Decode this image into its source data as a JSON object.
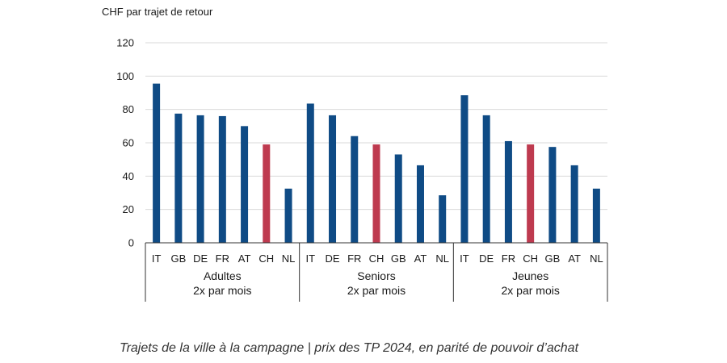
{
  "chart_data": {
    "type": "bar",
    "unit_label": "CHF par trajet de retour",
    "ylim": [
      0,
      120
    ],
    "yticks": [
      0,
      20,
      40,
      60,
      80,
      100,
      120
    ],
    "grid": true,
    "legend": "none",
    "colors": {
      "default": "#0F4B85",
      "highlight": "#BE3A4F",
      "grid": "#D9D9D9",
      "axis": "#333333"
    },
    "highlight_category": "CH",
    "groups": [
      {
        "label": "Adultes",
        "sublabel": "2x par mois",
        "categories": [
          "IT",
          "GB",
          "DE",
          "FR",
          "AT",
          "CH",
          "NL"
        ],
        "values": [
          95.5,
          77.5,
          76.5,
          76,
          70,
          59,
          32.5
        ]
      },
      {
        "label": "Seniors",
        "sublabel": "2x par mois",
        "categories": [
          "IT",
          "DE",
          "FR",
          "CH",
          "GB",
          "AT",
          "NL"
        ],
        "values": [
          83.5,
          76.5,
          64,
          59,
          53,
          46.5,
          28.5
        ]
      },
      {
        "label": "Jeunes",
        "sublabel": "2x par mois",
        "categories": [
          "IT",
          "DE",
          "FR",
          "CH",
          "GB",
          "AT",
          "NL"
        ],
        "values": [
          88.5,
          76.5,
          61,
          59,
          57.5,
          46.5,
          32.5
        ]
      }
    ],
    "caption": "Trajets de la ville à la campagne | prix des TP 2024, en parité de pouvoir d’achat"
  }
}
